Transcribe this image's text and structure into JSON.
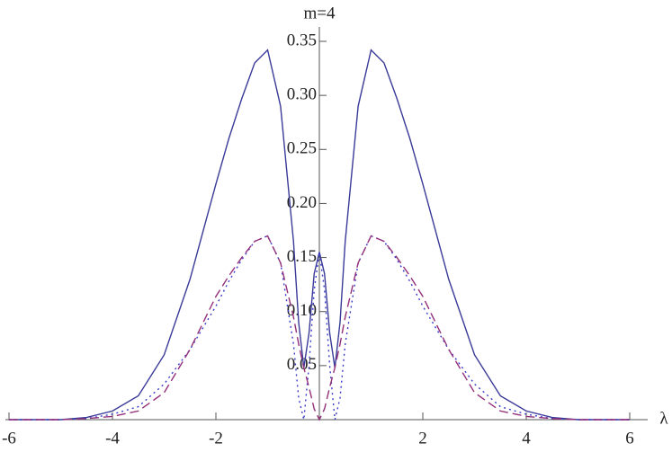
{
  "chart_data": {
    "type": "line",
    "title": "m=4",
    "x_label": "λ",
    "x": [
      -6,
      -5,
      -4.5,
      -4,
      -3.5,
      -3,
      -2.5,
      -2,
      -1.75,
      -1.5,
      -1.25,
      -1,
      -0.75,
      -0.5,
      -0.4,
      -0.3,
      -0.2,
      -0.1,
      0,
      0.1,
      0.2,
      0.3,
      0.4,
      0.5,
      0.75,
      1,
      1.25,
      1.5,
      1.75,
      2,
      2.5,
      3,
      3.5,
      4,
      4.5,
      5,
      6
    ],
    "series": [
      {
        "color": "#3a3a98",
        "dash": "solid",
        "values": [
          0,
          0,
          0.002,
          0.008,
          0.022,
          0.06,
          0.13,
          0.218,
          0.26,
          0.297,
          0.33,
          0.342,
          0.29,
          0.165,
          0.09,
          0.048,
          0.08,
          0.135,
          0.155,
          0.135,
          0.08,
          0.048,
          0.09,
          0.165,
          0.29,
          0.342,
          0.33,
          0.297,
          0.26,
          0.218,
          0.13,
          0.06,
          0.022,
          0.008,
          0.002,
          0,
          0
        ]
      },
      {
        "color": "#3a3ac8",
        "dash": "dotted",
        "values": [
          0,
          0,
          0.001,
          0.005,
          0.012,
          0.033,
          0.065,
          0.105,
          0.128,
          0.148,
          0.165,
          0.17,
          0.145,
          0.07,
          0.02,
          0,
          0.05,
          0.12,
          0.155,
          0.12,
          0.05,
          0,
          0.02,
          0.07,
          0.145,
          0.17,
          0.165,
          0.148,
          0.128,
          0.105,
          0.065,
          0.033,
          0.012,
          0.005,
          0.001,
          0,
          0
        ]
      },
      {
        "color": "#93307a",
        "dash": "dashed",
        "values": [
          0,
          0,
          0.001,
          0.003,
          0.008,
          0.025,
          0.065,
          0.114,
          0.133,
          0.15,
          0.165,
          0.17,
          0.145,
          0.095,
          0.07,
          0.048,
          0.03,
          0.01,
          0,
          0.01,
          0.03,
          0.048,
          0.07,
          0.095,
          0.145,
          0.17,
          0.165,
          0.15,
          0.133,
          0.114,
          0.065,
          0.025,
          0.008,
          0.003,
          0.001,
          0,
          0
        ]
      }
    ],
    "xlim": [
      -6,
      6
    ],
    "ylim": [
      0,
      0.35
    ],
    "xticks": [
      -6,
      -4,
      -2,
      2,
      4,
      6
    ],
    "yticks": [
      {
        "value": 0.05,
        "label": "0.05"
      },
      {
        "value": 0.1,
        "label": "0.10"
      },
      {
        "value": 0.15,
        "label": "0.15"
      },
      {
        "value": 0.2,
        "label": "0.20"
      },
      {
        "value": 0.25,
        "label": "0.25"
      },
      {
        "value": 0.3,
        "label": "0.30"
      },
      {
        "value": 0.35,
        "label": "0.35"
      }
    ]
  }
}
